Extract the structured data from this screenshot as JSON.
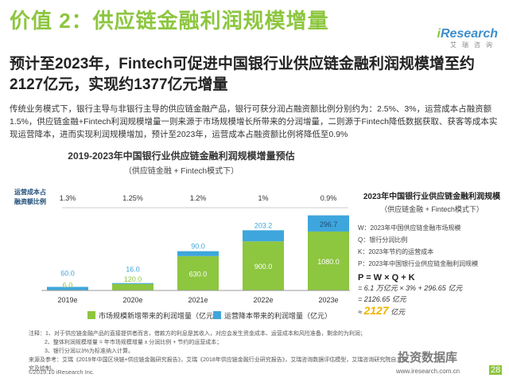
{
  "header": {
    "title": "价值 2：供应链金融利润规模增量",
    "logo_brand_i": "i",
    "logo_brand_rest": "Research",
    "logo_cn": "艾瑞咨询"
  },
  "headline": "预计至2023年，Fintech可促进中国银行业供应链金融利润规模增至约2127亿元，实现约1377亿元增量",
  "paragraph": "传统业务模式下，银行主导与非银行主导的供应链金融产品，银行可获分润占融资额比例分别约为：2.5%、3%，运营成本占融资额1.5%，供应链金融+Fintech利润规模增量一则来源于市场规模增长所带来的分润增量，二则源于Fintech降低数据获取、获客等成本实现运营降本，进而实现利润规模增加，预计至2023年，运营成本占融资额比例将降低至0.9%",
  "chart": {
    "title": "2019-2023年中国银行业供应链金融利润规模增量预估",
    "subtitle": "（供应链金融 + Fintech模式下）",
    "ratio_label_line1": "运营成本占",
    "ratio_label_line2": "融资额比例",
    "ratios": [
      "1.3%",
      "1.25%",
      "1.2%",
      "1%",
      "0.9%"
    ],
    "legend_market": "市场规模新增带来的利润增量（亿元）",
    "legend_cost": "运营降本带来的利润增量（亿元）"
  },
  "chart_data": {
    "type": "bar",
    "stacked": true,
    "categories": [
      "2019e",
      "2020e",
      "2021e",
      "2022e",
      "2023e"
    ],
    "series": [
      {
        "name": "市场规模新增带来的利润增量（亿元）",
        "values": [
          6.0,
          120.0,
          630.0,
          900.0,
          1080.0
        ],
        "color": "#8dc63f"
      },
      {
        "name": "运营降本带来的利润增量（亿元）",
        "values": [
          60.0,
          16.0,
          90.0,
          203.2,
          296.7
        ],
        "color": "#3ea6dc"
      }
    ],
    "bottom_labels": [
      "6.0",
      "120.0",
      "630.0",
      "900.0",
      "1080.0"
    ],
    "top_labels": [
      "60.0",
      "16.0",
      "90.0",
      "203.2",
      "296.7"
    ],
    "label_colors": {
      "market": "#ffffff",
      "cost": "#1f4e79",
      "cost_outside": "#3ea6dc"
    },
    "ylim": [
      0,
      1400
    ],
    "legend_position": "bottom"
  },
  "right_panel": {
    "title": "2023年中国银行业供应链金融利润规模",
    "subtitle": "（供应链金融 + Fintech模式下）",
    "legend": [
      "W：2023年中国供应链金融市场规模",
      "Q：银行分润比例",
      "K：2023年节约的运营成本",
      "P：2023年中国银行业供应链金融利润规模"
    ],
    "formula": "P = W × Q + K",
    "calc1": "= 6.1 万亿元 × 3% + 296.65 亿元",
    "calc2": "= 2126.65 亿元",
    "approx_prefix": "≈ ",
    "approx_value": "2127",
    "approx_unit": " 亿元"
  },
  "notes": [
    "注释：1、对于供应链金融产品的直接提供者而言，借款方的利息是其收入，对应会发生资金成本、运营成本和风险准备，剩余的为利润；",
    "2、整体利润规模增量 = 年市场规模增量 x 分润比例 + 节约的运营成本；",
    "3、银行分润以3%为标准纳入计算。",
    "来源及参考：艾瑞《2019年中国区块链+供应链金融研究报告》，艾瑞《2018年供应链金融行业研究报告》，艾瑞咨询数据评估模型，艾瑞咨询研究院自主研究及绘制。"
  ],
  "footer": {
    "copyright": "©2019.10 iResearch Inc.",
    "site": "www.iresearch.com.cn",
    "page": "28",
    "watermark": "投资数据库"
  }
}
